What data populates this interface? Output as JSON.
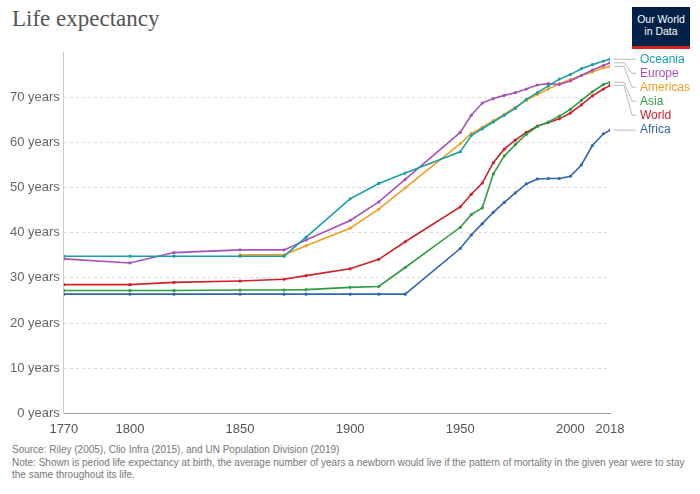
{
  "chart_data": {
    "type": "line",
    "title": "Life expectancy",
    "logo": "Our World in Data",
    "source": "Source: Riley (2005), Clio Infra (2015), and UN Population Division (2019)",
    "note": "Note: Shown is period life expectancy at birth, the average number of years a newborn would live if the pattern of mortality in the given year were to stay the same throughout its life.",
    "x": [
      1770,
      1800,
      1820,
      1850,
      1870,
      1880,
      1900,
      1913,
      1925,
      1950,
      1955,
      1960,
      1965,
      1970,
      1975,
      1980,
      1985,
      1990,
      1995,
      2000,
      2005,
      2010,
      2015,
      2018
    ],
    "series": [
      {
        "name": "Oceania",
        "color": "#18a0a7",
        "values": [
          34.8,
          34.8,
          34.8,
          34.8,
          34.8,
          39.0,
          47.5,
          50.9,
          53.2,
          57.9,
          61.5,
          63.0,
          64.5,
          66.0,
          67.5,
          69.5,
          71.0,
          72.5,
          74.0,
          75.0,
          76.3,
          77.2,
          78.0,
          78.4
        ]
      },
      {
        "name": "Europe",
        "color": "#a652ba",
        "values": [
          34.2,
          33.3,
          35.6,
          36.2,
          36.2,
          38.4,
          42.7,
          46.8,
          51.8,
          62.2,
          66.0,
          68.7,
          69.7,
          70.4,
          71.0,
          71.8,
          72.7,
          73.0,
          72.8,
          73.6,
          74.8,
          76.0,
          77.0,
          77.6
        ]
      },
      {
        "name": "Americas",
        "color": "#f0a020",
        "values": [
          null,
          null,
          null,
          35.1,
          35.1,
          37.1,
          41.0,
          45.2,
          49.9,
          59.7,
          62.0,
          63.3,
          64.8,
          66.2,
          67.8,
          69.3,
          70.6,
          71.8,
          73.0,
          73.9,
          74.8,
          75.6,
          76.5,
          76.8
        ]
      },
      {
        "name": "Asia",
        "color": "#2e9c45",
        "values": [
          27.2,
          27.2,
          27.2,
          27.3,
          27.3,
          27.4,
          27.9,
          28.1,
          32.3,
          41.2,
          44.0,
          45.5,
          53.0,
          57.0,
          59.5,
          61.8,
          63.5,
          64.5,
          65.8,
          67.3,
          69.3,
          71.2,
          72.8,
          73.3
        ]
      },
      {
        "name": "World",
        "color": "#cf2027",
        "values": [
          28.5,
          28.5,
          29.0,
          29.3,
          29.7,
          30.5,
          32.0,
          34.1,
          38.0,
          45.7,
          48.5,
          51.0,
          55.5,
          58.5,
          60.5,
          62.2,
          63.6,
          64.4,
          65.2,
          66.5,
          68.3,
          70.3,
          71.8,
          72.6
        ]
      },
      {
        "name": "Africa",
        "color": "#3365b0",
        "values": [
          26.4,
          26.4,
          26.4,
          26.4,
          26.4,
          26.4,
          26.4,
          26.4,
          26.4,
          36.5,
          39.5,
          42.0,
          44.5,
          46.7,
          48.8,
          50.8,
          51.9,
          52.0,
          52.0,
          52.5,
          55.0,
          59.3,
          61.9,
          62.7
        ]
      }
    ],
    "xlim": [
      1770,
      2018
    ],
    "xticks": [
      1770,
      1800,
      1850,
      1900,
      1950,
      2000,
      2018
    ],
    "ylim": [
      0,
      80
    ],
    "yticks": [
      {
        "value": 0,
        "label": "0 years"
      },
      {
        "value": 10,
        "label": "10 years"
      },
      {
        "value": 20,
        "label": "20 years"
      },
      {
        "value": 30,
        "label": "30 years"
      },
      {
        "value": 40,
        "label": "40 years"
      },
      {
        "value": 50,
        "label": "50 years"
      },
      {
        "value": 60,
        "label": "60 years"
      },
      {
        "value": 70,
        "label": "70 years"
      }
    ],
    "grid": true,
    "marker": "circle",
    "legend": "right"
  }
}
